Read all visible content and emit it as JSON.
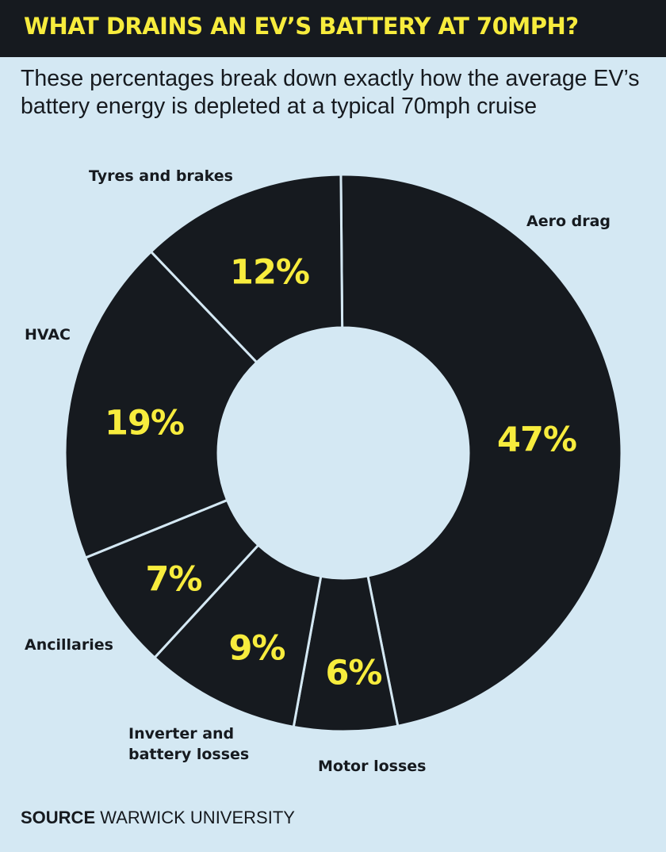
{
  "header": {
    "title": "WHAT DRAINS AN EV’S BATTERY AT 70MPH?",
    "subtitle": "These percentages break down exactly how the average EV’s battery energy is depleted at a typical 70mph cruise"
  },
  "source": {
    "label": "SOURCE",
    "text": "WARWICK UNIVERSITY"
  },
  "colors": {
    "background": "#d4e8f3",
    "slice": "#161a1f",
    "value_text": "#f7ec3d",
    "divider": "#d4e8f3"
  },
  "chart_data": {
    "type": "pie",
    "style": "donut",
    "categories": [
      "Aero drag",
      "Motor losses",
      "Inverter and battery losses",
      "Ancillaries",
      "HVAC",
      "Tyres and brakes"
    ],
    "values": [
      47,
      6,
      9,
      7,
      19,
      12
    ],
    "value_labels": [
      "47%",
      "6%",
      "9%",
      "7%",
      "19%",
      "12%"
    ],
    "unit": "%"
  }
}
